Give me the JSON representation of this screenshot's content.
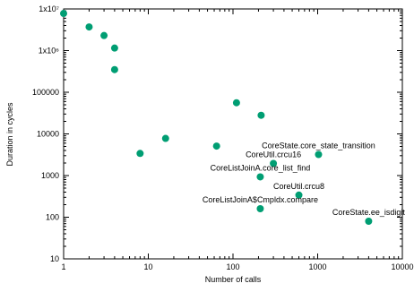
{
  "chart_data": {
    "type": "scatter",
    "title": "",
    "xlabel": "Number of calls",
    "ylabel": "Duration in cycles",
    "x_scale": "log",
    "y_scale": "log",
    "xlim": [
      1,
      10000
    ],
    "ylim": [
      10,
      10000000
    ],
    "grid": false,
    "legend": "none",
    "marker_color": "#009e73",
    "x_ticks": [
      {
        "value": 1,
        "label": "1"
      },
      {
        "value": 10,
        "label": "10"
      },
      {
        "value": 100,
        "label": "100"
      },
      {
        "value": 1000,
        "label": "1000"
      },
      {
        "value": 10000,
        "label": "10000"
      }
    ],
    "y_ticks": [
      {
        "value": 10,
        "label": "10"
      },
      {
        "value": 100,
        "label": "100"
      },
      {
        "value": 1000,
        "label": "1000"
      },
      {
        "value": 10000,
        "label": "10000"
      },
      {
        "value": 100000,
        "label": "100000"
      },
      {
        "value": 1000000,
        "label": "1x10⁶"
      },
      {
        "value": 10000000,
        "label": "1x10⁷"
      }
    ],
    "points": [
      {
        "x": 1,
        "y": 7800000,
        "label": ""
      },
      {
        "x": 2,
        "y": 3700000,
        "label": ""
      },
      {
        "x": 3,
        "y": 2300000,
        "label": ""
      },
      {
        "x": 4,
        "y": 1150000,
        "label": ""
      },
      {
        "x": 4,
        "y": 350000,
        "label": ""
      },
      {
        "x": 8,
        "y": 3400,
        "label": ""
      },
      {
        "x": 16,
        "y": 7800,
        "label": ""
      },
      {
        "x": 64,
        "y": 5100,
        "label": ""
      },
      {
        "x": 110,
        "y": 56000,
        "label": ""
      },
      {
        "x": 215,
        "y": 28000,
        "label": ""
      },
      {
        "x": 1024,
        "y": 3200,
        "label": "CoreState.core_state_transition"
      },
      {
        "x": 300,
        "y": 1950,
        "label": "CoreUtil.crcu16"
      },
      {
        "x": 210,
        "y": 930,
        "label": "CoreListJoinA.core_list_find"
      },
      {
        "x": 600,
        "y": 340,
        "label": "CoreUtil.crcu8"
      },
      {
        "x": 210,
        "y": 160,
        "label": "CoreListJoinA$Cmpldx.compare"
      },
      {
        "x": 4000,
        "y": 80,
        "label": "CoreState.ee_isdigit"
      }
    ]
  }
}
